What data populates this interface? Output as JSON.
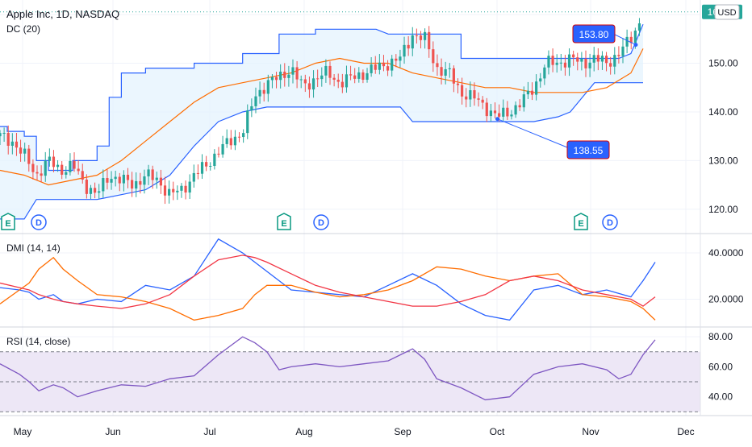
{
  "main_pane": {
    "title": "Apple Inc, 1D, NASDAQ",
    "indicator_label": "DC (20)",
    "currency_button": "USD",
    "last_price": "160.55",
    "callout_high": "153.80",
    "callout_low": "138.55",
    "event_markers": [
      "E",
      "D",
      "E",
      "D",
      "E",
      "D"
    ]
  },
  "dmi_pane": {
    "label": "DMI (14, 14)"
  },
  "rsi_pane": {
    "label": "RSI (14, close)"
  },
  "colors": {
    "up": "#26a69a",
    "down": "#ef5350",
    "donchian_band": "#2962ff",
    "donchian_basis": "#ff6d00",
    "donchian_fill": "#e3f2fd",
    "dmi_plus": "#2962ff",
    "dmi_minus": "#ff6d00",
    "adx": "#f23645",
    "rsi_line": "#7e57c2",
    "rsi_fill": "#ede7f6",
    "grid": "#f0f3fa"
  },
  "chart_data": [
    {
      "type": "candlestick",
      "title": "Apple Inc, 1D, NASDAQ",
      "series": [
        {
          "name": "DC (20)"
        }
      ],
      "ylim": [
        115,
        163
      ],
      "yticks": [
        120.0,
        130.0,
        140.0,
        150.0,
        160.0
      ],
      "ytick_labels": [
        "120.00",
        "130.00",
        "140.00",
        "150.00"
      ],
      "x_labels": [
        "May",
        "Jun",
        "Jul",
        "Aug",
        "Sep",
        "Oct",
        "Nov",
        "Dec"
      ],
      "close_path": [
        [
          0,
          135
        ],
        [
          5,
          134
        ],
        [
          10,
          131
        ],
        [
          15,
          127
        ],
        [
          20,
          130
        ],
        [
          25,
          128
        ],
        [
          30,
          129
        ],
        [
          35,
          125
        ],
        [
          40,
          123
        ],
        [
          45,
          127
        ],
        [
          50,
          126
        ],
        [
          55,
          125
        ],
        [
          60,
          127
        ],
        [
          65,
          126
        ],
        [
          70,
          123
        ],
        [
          75,
          124
        ],
        [
          80,
          127
        ],
        [
          85,
          129
        ],
        [
          90,
          132
        ],
        [
          95,
          134
        ],
        [
          100,
          136
        ],
        [
          105,
          143
        ],
        [
          110,
          146
        ],
        [
          115,
          147
        ],
        [
          120,
          149
        ],
        [
          125,
          145
        ],
        [
          130,
          147
        ],
        [
          135,
          148
        ],
        [
          140,
          146
        ],
        [
          145,
          147
        ],
        [
          150,
          148
        ],
        [
          155,
          149
        ],
        [
          160,
          150
        ],
        [
          165,
          151
        ],
        [
          170,
          156
        ],
        [
          175,
          155
        ],
        [
          180,
          149
        ],
        [
          185,
          148
        ],
        [
          190,
          144
        ],
        [
          195,
          143
        ],
        [
          200,
          141
        ],
        [
          205,
          139
        ],
        [
          210,
          140
        ],
        [
          215,
          142
        ],
        [
          220,
          145
        ],
        [
          225,
          150
        ],
        [
          230,
          150
        ],
        [
          235,
          151
        ],
        [
          240,
          150
        ],
        [
          245,
          151
        ],
        [
          250,
          150
        ],
        [
          255,
          152
        ],
        [
          260,
          155
        ],
        [
          265,
          160
        ]
      ],
      "donchian_upper": [
        [
          0,
          137
        ],
        [
          3,
          137
        ],
        [
          3,
          136
        ],
        [
          10,
          136
        ],
        [
          10,
          135
        ],
        [
          15,
          135
        ],
        [
          15,
          130
        ],
        [
          20,
          130
        ],
        [
          20,
          128
        ],
        [
          30,
          128
        ],
        [
          30,
          130
        ],
        [
          40,
          130
        ],
        [
          40,
          133
        ],
        [
          45,
          133
        ],
        [
          45,
          143
        ],
        [
          50,
          143
        ],
        [
          50,
          148
        ],
        [
          60,
          148
        ],
        [
          60,
          149
        ],
        [
          80,
          149
        ],
        [
          80,
          150
        ],
        [
          100,
          150
        ],
        [
          100,
          152
        ],
        [
          115,
          152
        ],
        [
          115,
          156
        ],
        [
          130,
          156
        ],
        [
          130,
          157
        ],
        [
          155,
          157
        ],
        [
          160,
          156
        ],
        [
          165,
          156
        ],
        [
          190,
          156
        ],
        [
          190,
          151
        ],
        [
          205,
          151
        ],
        [
          205,
          151
        ],
        [
          230,
          151
        ],
        [
          230,
          151
        ],
        [
          255,
          151
        ],
        [
          260,
          152
        ],
        [
          265,
          158
        ]
      ],
      "donchian_basis": [
        [
          0,
          128
        ],
        [
          10,
          127
        ],
        [
          20,
          125
        ],
        [
          30,
          126
        ],
        [
          40,
          127
        ],
        [
          50,
          130
        ],
        [
          60,
          134
        ],
        [
          70,
          138
        ],
        [
          80,
          142
        ],
        [
          90,
          145
        ],
        [
          100,
          146
        ],
        [
          110,
          147
        ],
        [
          120,
          148
        ],
        [
          130,
          150
        ],
        [
          140,
          151
        ],
        [
          150,
          150
        ],
        [
          160,
          150
        ],
        [
          170,
          148
        ],
        [
          180,
          147
        ],
        [
          190,
          146
        ],
        [
          200,
          145
        ],
        [
          210,
          145
        ],
        [
          220,
          144
        ],
        [
          230,
          144
        ],
        [
          240,
          144
        ],
        [
          250,
          145
        ],
        [
          260,
          148
        ],
        [
          265,
          153
        ]
      ],
      "donchian_lower": [
        [
          0,
          118
        ],
        [
          10,
          118
        ],
        [
          15,
          122
        ],
        [
          40,
          122
        ],
        [
          50,
          123
        ],
        [
          60,
          124
        ],
        [
          70,
          127
        ],
        [
          80,
          133
        ],
        [
          90,
          138
        ],
        [
          100,
          140
        ],
        [
          110,
          141
        ],
        [
          120,
          141
        ],
        [
          130,
          141
        ],
        [
          140,
          141
        ],
        [
          150,
          141
        ],
        [
          160,
          141
        ],
        [
          165,
          141
        ],
        [
          170,
          138
        ],
        [
          180,
          138
        ],
        [
          190,
          138
        ],
        [
          200,
          138
        ],
        [
          210,
          138
        ],
        [
          220,
          138
        ],
        [
          230,
          139
        ],
        [
          235,
          140
        ],
        [
          240,
          143
        ],
        [
          245,
          146
        ],
        [
          265,
          146
        ]
      ],
      "callouts": [
        153.8,
        138.55
      ],
      "last": 160.55
    },
    {
      "type": "line",
      "title": "DMI (14, 14)",
      "ylim": [
        8,
        48
      ],
      "yticks": [
        20.0,
        40.0
      ],
      "ytick_labels": [
        "20.0000",
        "40.0000"
      ],
      "series": [
        {
          "values": [
            [
              0,
              25
            ],
            [
              8,
              24
            ],
            [
              12,
              23
            ],
            [
              16,
              20
            ],
            [
              22,
              22
            ],
            [
              26,
              19
            ],
            [
              32,
              18
            ],
            [
              40,
              20
            ],
            [
              50,
              19
            ],
            [
              60,
              26
            ],
            [
              70,
              24
            ],
            [
              80,
              30
            ],
            [
              90,
              46
            ],
            [
              100,
              40
            ],
            [
              105,
              36
            ],
            [
              110,
              32
            ],
            [
              120,
              24
            ],
            [
              130,
              23
            ],
            [
              140,
              22
            ],
            [
              150,
              21
            ],
            [
              160,
              26
            ],
            [
              170,
              31
            ],
            [
              180,
              26
            ],
            [
              190,
              18
            ],
            [
              200,
              13
            ],
            [
              210,
              11
            ],
            [
              220,
              24
            ],
            [
              230,
              26
            ],
            [
              240,
              22
            ],
            [
              250,
              24
            ],
            [
              260,
              21
            ],
            [
              265,
              28
            ],
            [
              270,
              36
            ]
          ]
        },
        {
          "values": [
            [
              0,
              18
            ],
            [
              8,
              24
            ],
            [
              12,
              27
            ],
            [
              16,
              33
            ],
            [
              22,
              38
            ],
            [
              26,
              33
            ],
            [
              32,
              28
            ],
            [
              40,
              22
            ],
            [
              50,
              21
            ],
            [
              60,
              19
            ],
            [
              70,
              16
            ],
            [
              80,
              11
            ],
            [
              90,
              13
            ],
            [
              100,
              16
            ],
            [
              105,
              22
            ],
            [
              110,
              26
            ],
            [
              120,
              26
            ],
            [
              130,
              23
            ],
            [
              140,
              21
            ],
            [
              150,
              22
            ],
            [
              160,
              24
            ],
            [
              170,
              28
            ],
            [
              180,
              34
            ],
            [
              190,
              33
            ],
            [
              200,
              30
            ],
            [
              210,
              28
            ],
            [
              220,
              30
            ],
            [
              230,
              31
            ],
            [
              240,
              22
            ],
            [
              250,
              21
            ],
            [
              260,
              19
            ],
            [
              265,
              16
            ],
            [
              270,
              11
            ]
          ]
        },
        {
          "values": [
            [
              0,
              27
            ],
            [
              8,
              25
            ],
            [
              12,
              24
            ],
            [
              16,
              22
            ],
            [
              22,
              20
            ],
            [
              26,
              19
            ],
            [
              32,
              18
            ],
            [
              40,
              17
            ],
            [
              50,
              16
            ],
            [
              60,
              18
            ],
            [
              70,
              22
            ],
            [
              80,
              30
            ],
            [
              90,
              37
            ],
            [
              100,
              39
            ],
            [
              105,
              38
            ],
            [
              110,
              36
            ],
            [
              120,
              31
            ],
            [
              130,
              26
            ],
            [
              140,
              23
            ],
            [
              150,
              21
            ],
            [
              160,
              19
            ],
            [
              170,
              17
            ],
            [
              180,
              17
            ],
            [
              190,
              19
            ],
            [
              200,
              22
            ],
            [
              210,
              28
            ],
            [
              220,
              30
            ],
            [
              230,
              28
            ],
            [
              240,
              24
            ],
            [
              250,
              22
            ],
            [
              260,
              20
            ],
            [
              265,
              17
            ],
            [
              270,
              21
            ]
          ]
        }
      ]
    },
    {
      "type": "line",
      "title": "RSI (14, close)",
      "ylim": [
        28,
        86
      ],
      "yticks": [
        40.0,
        60.0,
        80.0
      ],
      "ytick_labels": [
        "40.00",
        "60.00",
        "80.00"
      ],
      "bands": [
        70,
        50,
        30
      ],
      "series": [
        {
          "values": [
            [
              0,
              62
            ],
            [
              8,
              55
            ],
            [
              12,
              50
            ],
            [
              16,
              44
            ],
            [
              22,
              48
            ],
            [
              26,
              46
            ],
            [
              32,
              40
            ],
            [
              40,
              44
            ],
            [
              50,
              48
            ],
            [
              60,
              47
            ],
            [
              70,
              52
            ],
            [
              80,
              54
            ],
            [
              90,
              68
            ],
            [
              100,
              80
            ],
            [
              105,
              76
            ],
            [
              110,
              70
            ],
            [
              115,
              58
            ],
            [
              120,
              60
            ],
            [
              130,
              62
            ],
            [
              140,
              60
            ],
            [
              150,
              62
            ],
            [
              160,
              64
            ],
            [
              170,
              72
            ],
            [
              175,
              65
            ],
            [
              180,
              52
            ],
            [
              190,
              46
            ],
            [
              200,
              38
            ],
            [
              210,
              40
            ],
            [
              220,
              55
            ],
            [
              230,
              60
            ],
            [
              240,
              62
            ],
            [
              250,
              58
            ],
            [
              255,
              52
            ],
            [
              260,
              55
            ],
            [
              265,
              68
            ],
            [
              270,
              78
            ]
          ]
        }
      ]
    }
  ]
}
